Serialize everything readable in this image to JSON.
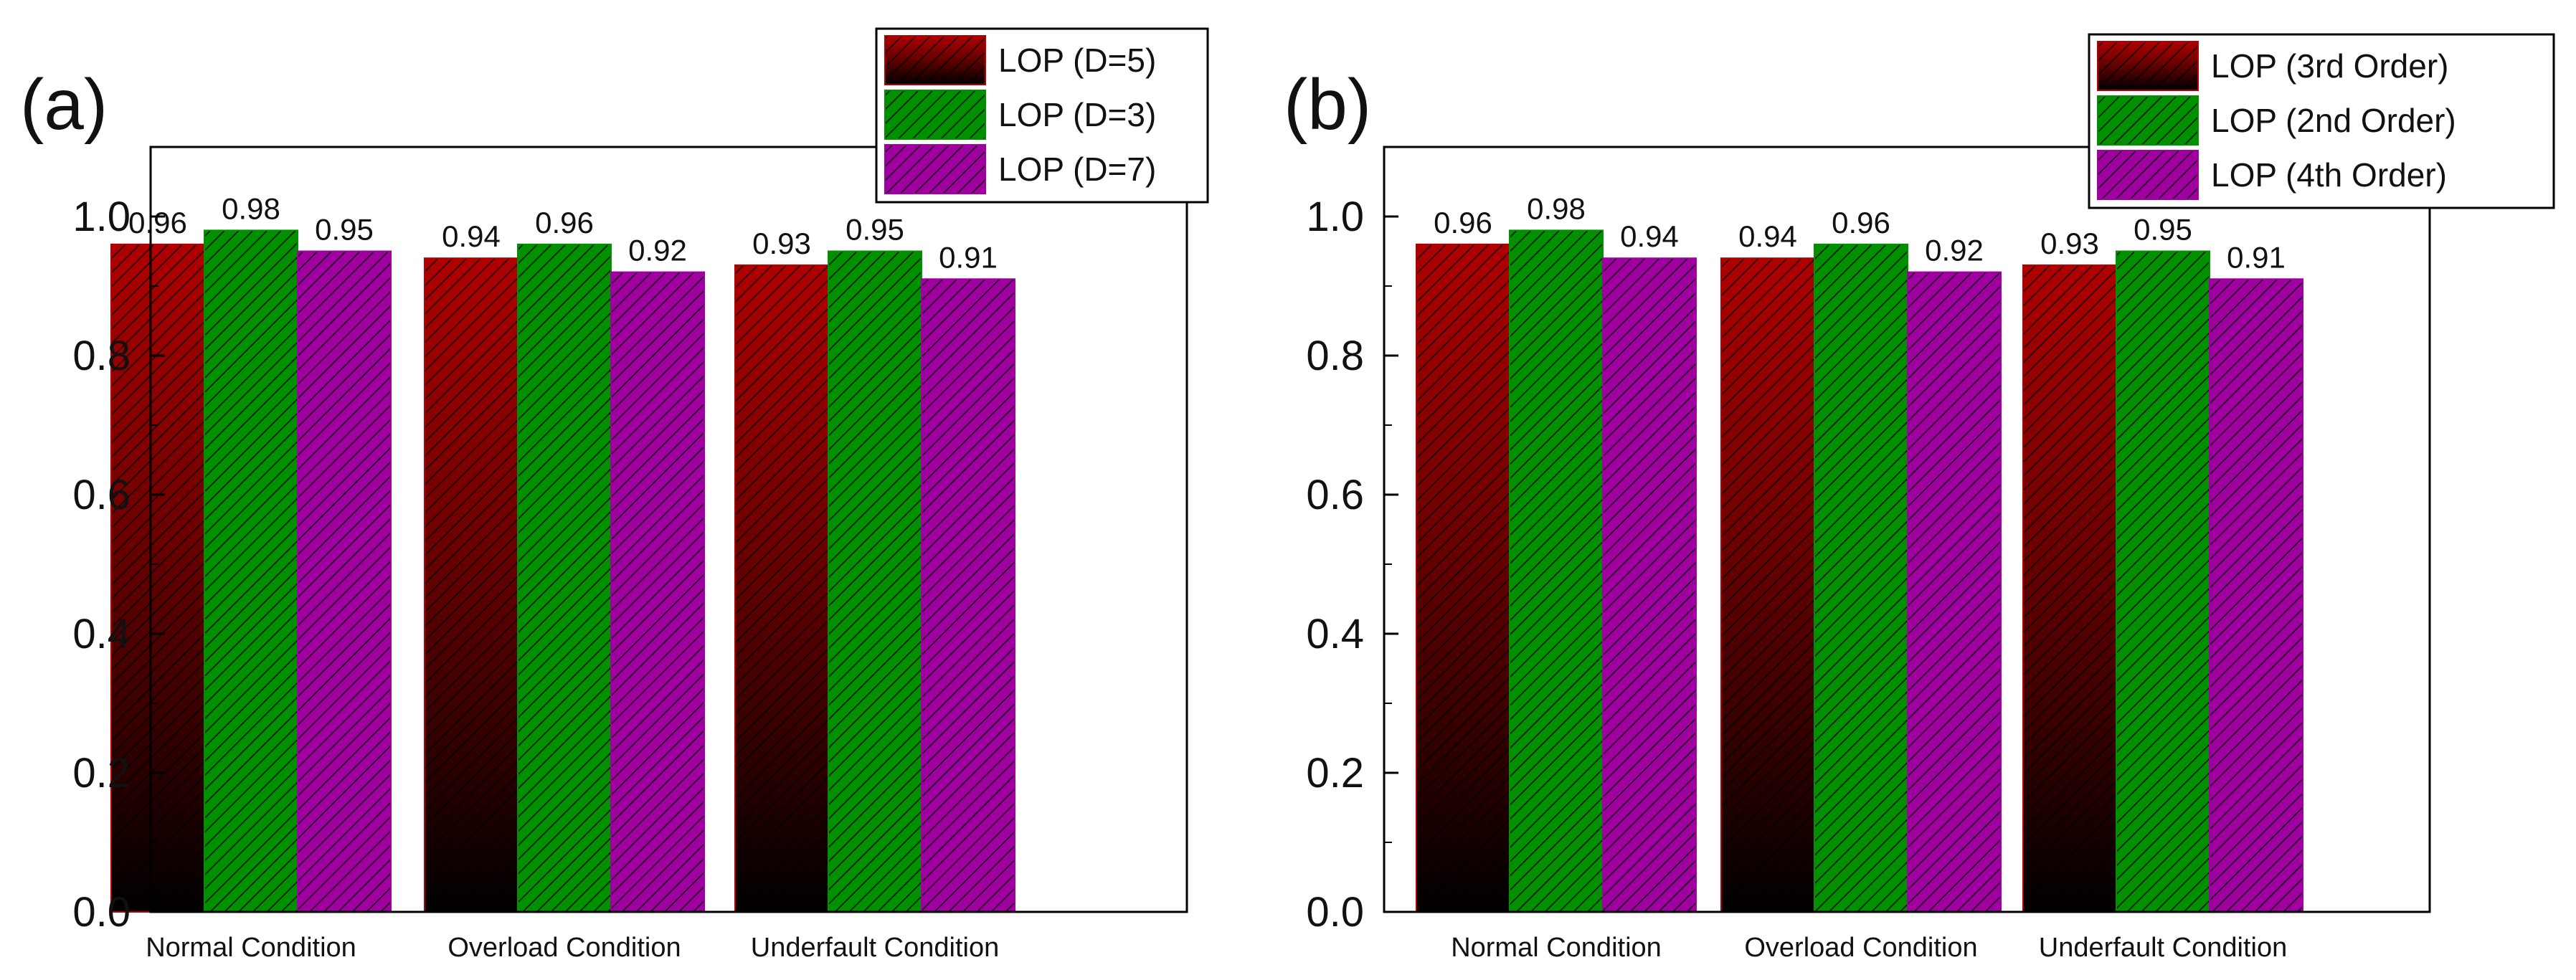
{
  "chart_data": [
    {
      "type": "bar",
      "panel_label": "(a)",
      "categories": [
        "Normal Condition",
        "Overload Condition",
        "Underfault Condition"
      ],
      "series": [
        {
          "name": "LOP (D=5)",
          "values": [
            0.96,
            0.94,
            0.93
          ],
          "value_labels": [
            "0.96",
            "0.94",
            "0.93"
          ],
          "color": "#b00000"
        },
        {
          "name": "LOP (D=3)",
          "values": [
            0.98,
            0.96,
            0.95
          ],
          "value_labels": [
            "0.98",
            "0.96",
            "0.95"
          ],
          "color": "#009000"
        },
        {
          "name": "LOP (D=7)",
          "values": [
            0.95,
            0.92,
            0.91
          ],
          "value_labels": [
            "0.95",
            "0.92",
            "0.91"
          ],
          "color": "#a000a0"
        }
      ],
      "ylim": [
        0,
        1.1
      ],
      "yticks": [
        "0.0",
        "0.2",
        "0.4",
        "0.6",
        "0.8",
        "1.0"
      ],
      "legend_position": "top-right",
      "title": "",
      "xlabel": "",
      "ylabel": ""
    },
    {
      "type": "bar",
      "panel_label": "(b)",
      "categories": [
        "Normal Condition",
        "Overload Condition",
        "Underfault Condition"
      ],
      "series": [
        {
          "name": "LOP (3rd Order)",
          "values": [
            0.96,
            0.94,
            0.93
          ],
          "value_labels": [
            "0.96",
            "0.94",
            "0.93"
          ],
          "color": "#b00000"
        },
        {
          "name": "LOP (2nd Order)",
          "values": [
            0.98,
            0.96,
            0.95
          ],
          "value_labels": [
            "0.98",
            "0.96",
            "0.95"
          ],
          "color": "#009000"
        },
        {
          "name": "LOP (4th Order)",
          "values": [
            0.94,
            0.92,
            0.91
          ],
          "value_labels": [
            "0.94",
            "0.92",
            "0.91"
          ],
          "color": "#a000a0"
        }
      ],
      "ylim": [
        0,
        1.1
      ],
      "yticks": [
        "0.0",
        "0.2",
        "0.4",
        "0.6",
        "0.8",
        "1.0"
      ],
      "legend_position": "top-right",
      "title": "",
      "xlabel": "",
      "ylabel": ""
    }
  ]
}
